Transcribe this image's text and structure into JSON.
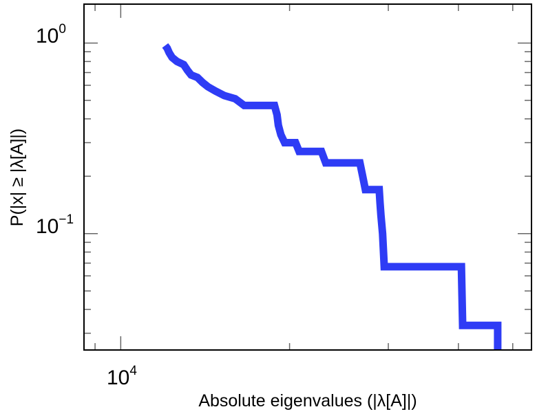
{
  "chart_data": {
    "type": "line",
    "title": "",
    "xlabel": "Absolute eigenvalues (|λ[A]|)",
    "ylabel": "P(|x| ≥ |λ[A]|)",
    "xscale": "log",
    "yscale": "log",
    "xlim": [
      8600,
      54000
    ],
    "ylim": [
      0.0245,
      1.6
    ],
    "x_ticks": [
      {
        "base": "10",
        "exp": "4",
        "value": 10000
      }
    ],
    "y_ticks": [
      {
        "base": "10",
        "exp": "0",
        "value": 1
      },
      {
        "base": "10",
        "exp": "−1",
        "value": 0.1
      }
    ],
    "grid": false,
    "series_color": "#2e3cf5",
    "series": [
      {
        "values": [
          [
            12000,
            0.97
          ],
          [
            12100,
            0.94
          ],
          [
            12200,
            0.89
          ],
          [
            12350,
            0.84
          ],
          [
            12600,
            0.8
          ],
          [
            12950,
            0.77
          ],
          [
            13150,
            0.72
          ],
          [
            13350,
            0.68
          ],
          [
            13700,
            0.66
          ],
          [
            14000,
            0.62
          ],
          [
            14300,
            0.59
          ],
          [
            14750,
            0.56
          ],
          [
            15300,
            0.53
          ],
          [
            16000,
            0.51
          ],
          [
            16600,
            0.47
          ],
          [
            18800,
            0.47
          ],
          [
            19000,
            0.42
          ],
          [
            19100,
            0.37
          ],
          [
            19300,
            0.33
          ],
          [
            19600,
            0.3
          ],
          [
            20500,
            0.3
          ],
          [
            20800,
            0.27
          ],
          [
            22800,
            0.27
          ],
          [
            23200,
            0.235
          ],
          [
            26700,
            0.235
          ],
          [
            27000,
            0.2
          ],
          [
            27300,
            0.17
          ],
          [
            28900,
            0.17
          ],
          [
            29000,
            0.145
          ],
          [
            29100,
            0.125
          ],
          [
            29300,
            0.1
          ],
          [
            29500,
            0.067
          ],
          [
            40500,
            0.067
          ],
          [
            40700,
            0.033
          ],
          [
            47000,
            0.033
          ],
          [
            47000,
            0.0245
          ]
        ]
      }
    ]
  }
}
